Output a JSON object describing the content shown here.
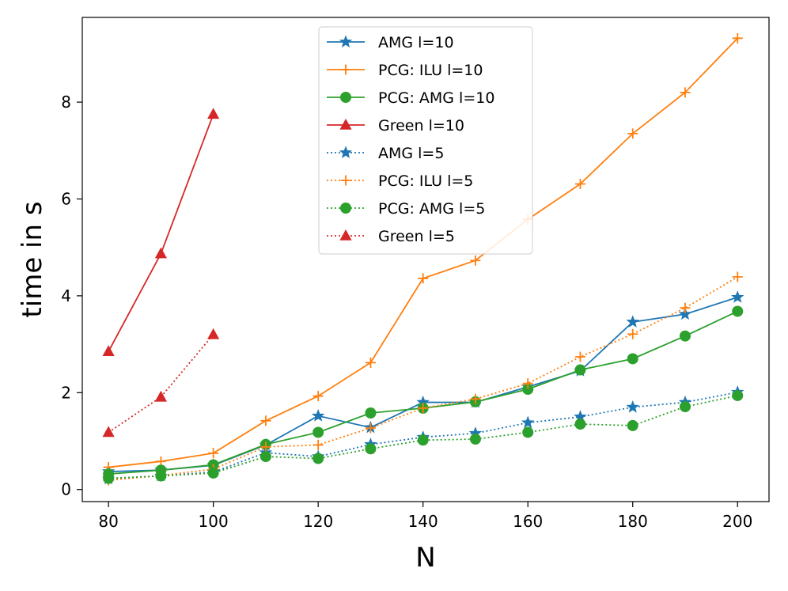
{
  "chart_data": {
    "type": "line",
    "title": "",
    "xlabel": "N",
    "ylabel": "time in s",
    "xlim": [
      75,
      206
    ],
    "ylim": [
      -0.25,
      9.75
    ],
    "xticks": [
      80,
      100,
      120,
      140,
      160,
      180,
      200
    ],
    "yticks": [
      0,
      2,
      4,
      6,
      8
    ],
    "grid": false,
    "legend_position": "top-center",
    "series": [
      {
        "name": "AMG l=10",
        "color": "#1f77b4",
        "style": "solid",
        "marker": "star",
        "x": [
          80,
          90,
          100,
          110,
          120,
          130,
          140,
          150,
          160,
          170,
          180,
          190,
          200
        ],
        "y": [
          0.37,
          0.4,
          0.5,
          0.92,
          1.52,
          1.28,
          1.8,
          1.8,
          2.12,
          2.45,
          3.46,
          3.62,
          3.97
        ]
      },
      {
        "name": "PCG: ILU l=10",
        "color": "#ff7f0e",
        "style": "solid",
        "marker": "plus",
        "x": [
          80,
          90,
          100,
          110,
          120,
          130,
          140,
          150,
          160,
          170,
          180,
          190,
          200
        ],
        "y": [
          0.46,
          0.58,
          0.75,
          1.42,
          1.93,
          2.62,
          4.36,
          4.73,
          5.58,
          6.31,
          7.35,
          8.2,
          9.32
        ]
      },
      {
        "name": "PCG: AMG l=10",
        "color": "#2ca02c",
        "style": "solid",
        "marker": "circle",
        "x": [
          80,
          90,
          100,
          110,
          120,
          130,
          140,
          150,
          160,
          170,
          180,
          190,
          200
        ],
        "y": [
          0.32,
          0.4,
          0.51,
          0.93,
          1.18,
          1.58,
          1.68,
          1.81,
          2.07,
          2.47,
          2.7,
          3.17,
          3.68
        ]
      },
      {
        "name": "Green l=10",
        "color": "#d62728",
        "style": "solid",
        "marker": "triangle",
        "x": [
          80,
          90,
          100
        ],
        "y": [
          2.85,
          4.87,
          7.75
        ]
      },
      {
        "name": "AMG l=5",
        "color": "#1f77b4",
        "style": "dotted",
        "marker": "star",
        "x": [
          80,
          90,
          100,
          110,
          120,
          130,
          140,
          150,
          160,
          170,
          180,
          190,
          200
        ],
        "y": [
          0.22,
          0.28,
          0.36,
          0.76,
          0.68,
          0.93,
          1.08,
          1.16,
          1.38,
          1.5,
          1.7,
          1.8,
          2.01
        ]
      },
      {
        "name": "PCG: ILU l=5",
        "color": "#ff7f0e",
        "style": "dotted",
        "marker": "plus",
        "x": [
          80,
          90,
          100,
          110,
          120,
          130,
          140,
          150,
          160,
          170,
          180,
          190,
          200
        ],
        "y": [
          0.19,
          0.29,
          0.42,
          0.88,
          0.92,
          1.27,
          1.68,
          1.87,
          2.19,
          2.74,
          3.21,
          3.75,
          4.39
        ]
      },
      {
        "name": "PCG: AMG l=5",
        "color": "#2ca02c",
        "style": "dotted",
        "marker": "circle",
        "x": [
          80,
          90,
          100,
          110,
          120,
          130,
          140,
          150,
          160,
          170,
          180,
          190,
          200
        ],
        "y": [
          0.23,
          0.28,
          0.34,
          0.68,
          0.64,
          0.84,
          1.02,
          1.04,
          1.18,
          1.35,
          1.32,
          1.71,
          1.94
        ]
      },
      {
        "name": "Green l=5",
        "color": "#d62728",
        "style": "dotted",
        "marker": "triangle",
        "x": [
          80,
          90,
          100
        ],
        "y": [
          1.18,
          1.91,
          3.2
        ]
      }
    ]
  }
}
